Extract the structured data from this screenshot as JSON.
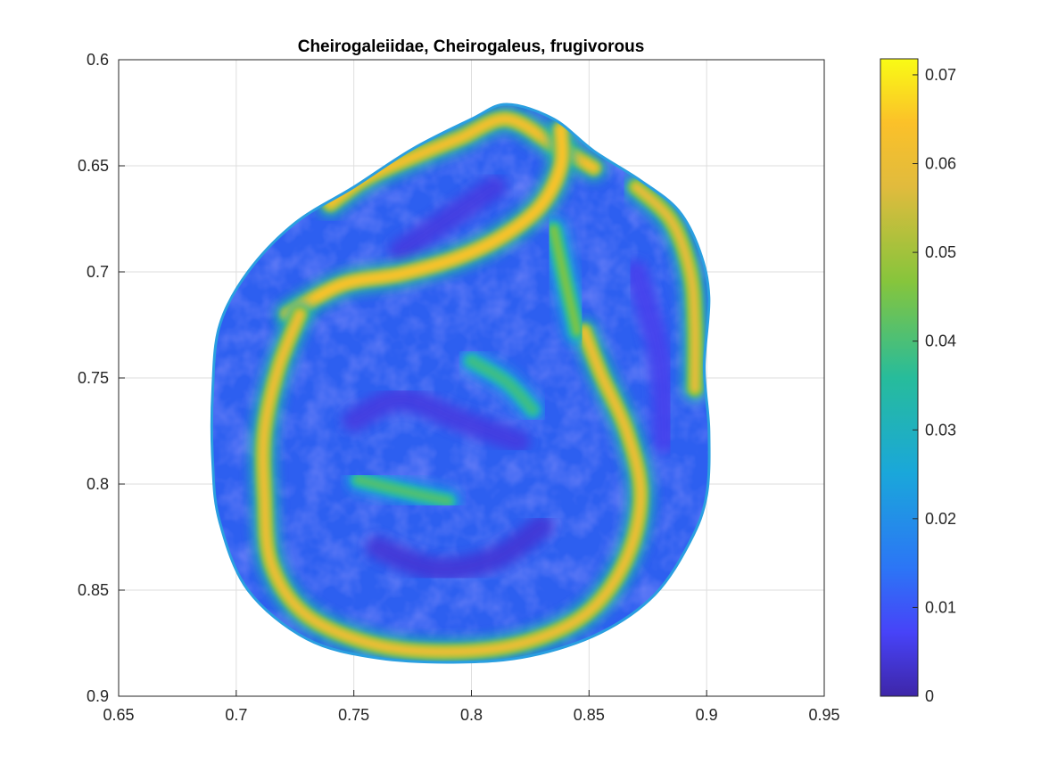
{
  "chart_data": {
    "type": "heatmap",
    "title": "Cheirogaleiidae, Cheirogaleus, frugivorous",
    "xlabel": "",
    "ylabel": "",
    "xlim": [
      0.65,
      0.95
    ],
    "ylim": [
      0.6,
      0.9
    ],
    "y_reversed": true,
    "x_ticks": [
      "0.65",
      "0.7",
      "0.75",
      "0.8",
      "0.85",
      "0.9",
      "0.95"
    ],
    "y_ticks": [
      "0.6",
      "0.65",
      "0.7",
      "0.75",
      "0.8",
      "0.85",
      "0.9"
    ],
    "grid": true,
    "colormap": "parula",
    "colorbar": {
      "limits": [
        0,
        0.071
      ],
      "ticks": [
        "0",
        "0.01",
        "0.02",
        "0.03",
        "0.04",
        "0.05",
        "0.06",
        "0.07"
      ]
    },
    "surface_outline": [
      [
        0.815,
        0.621
      ],
      [
        0.835,
        0.628
      ],
      [
        0.852,
        0.643
      ],
      [
        0.872,
        0.657
      ],
      [
        0.888,
        0.671
      ],
      [
        0.897,
        0.69
      ],
      [
        0.901,
        0.712
      ],
      [
        0.899,
        0.745
      ],
      [
        0.901,
        0.775
      ],
      [
        0.9,
        0.805
      ],
      [
        0.893,
        0.827
      ],
      [
        0.878,
        0.852
      ],
      [
        0.855,
        0.87
      ],
      [
        0.825,
        0.881
      ],
      [
        0.795,
        0.884
      ],
      [
        0.76,
        0.882
      ],
      [
        0.73,
        0.873
      ],
      [
        0.705,
        0.85
      ],
      [
        0.693,
        0.818
      ],
      [
        0.69,
        0.79
      ],
      [
        0.69,
        0.755
      ],
      [
        0.693,
        0.725
      ],
      [
        0.705,
        0.7
      ],
      [
        0.725,
        0.677
      ],
      [
        0.75,
        0.66
      ],
      [
        0.775,
        0.642
      ],
      [
        0.8,
        0.628
      ]
    ],
    "ridges": [
      {
        "level": 0.062,
        "points": [
          [
            0.74,
            0.668
          ],
          [
            0.755,
            0.656
          ],
          [
            0.775,
            0.646
          ],
          [
            0.795,
            0.637
          ],
          [
            0.815,
            0.628
          ],
          [
            0.835,
            0.64
          ],
          [
            0.852,
            0.651
          ]
        ]
      },
      {
        "level": 0.064,
        "points": [
          [
            0.722,
            0.72
          ],
          [
            0.745,
            0.706
          ],
          [
            0.77,
            0.701
          ],
          [
            0.795,
            0.693
          ],
          [
            0.815,
            0.682
          ],
          [
            0.83,
            0.668
          ],
          [
            0.838,
            0.65
          ],
          [
            0.838,
            0.633
          ]
        ]
      },
      {
        "level": 0.06,
        "points": [
          [
            0.727,
            0.72
          ],
          [
            0.718,
            0.745
          ],
          [
            0.712,
            0.775
          ],
          [
            0.712,
            0.805
          ],
          [
            0.715,
            0.838
          ],
          [
            0.73,
            0.862
          ],
          [
            0.76,
            0.876
          ],
          [
            0.795,
            0.879
          ],
          [
            0.825,
            0.874
          ],
          [
            0.85,
            0.86
          ],
          [
            0.866,
            0.835
          ],
          [
            0.872,
            0.805
          ],
          [
            0.866,
            0.775
          ],
          [
            0.855,
            0.748
          ],
          [
            0.848,
            0.728
          ]
        ]
      },
      {
        "level": 0.058,
        "points": [
          [
            0.87,
            0.66
          ],
          [
            0.885,
            0.676
          ],
          [
            0.893,
            0.7
          ],
          [
            0.895,
            0.725
          ],
          [
            0.895,
            0.755
          ]
        ]
      },
      {
        "level": 0.045,
        "points": [
          [
            0.835,
            0.68
          ],
          [
            0.84,
            0.705
          ],
          [
            0.845,
            0.728
          ]
        ]
      },
      {
        "level": 0.04,
        "points": [
          [
            0.752,
            0.798
          ],
          [
            0.77,
            0.803
          ],
          [
            0.79,
            0.808
          ]
        ]
      },
      {
        "level": 0.038,
        "points": [
          [
            0.8,
            0.742
          ],
          [
            0.815,
            0.752
          ],
          [
            0.826,
            0.765
          ]
        ]
      }
    ],
    "valleys": [
      {
        "level": 0.004,
        "points": [
          [
            0.76,
            0.83
          ],
          [
            0.785,
            0.84
          ],
          [
            0.81,
            0.835
          ],
          [
            0.83,
            0.82
          ]
        ]
      },
      {
        "level": 0.005,
        "points": [
          [
            0.77,
            0.69
          ],
          [
            0.79,
            0.675
          ],
          [
            0.81,
            0.66
          ]
        ]
      },
      {
        "level": 0.005,
        "points": [
          [
            0.75,
            0.77
          ],
          [
            0.77,
            0.76
          ],
          [
            0.795,
            0.77
          ],
          [
            0.82,
            0.78
          ]
        ]
      },
      {
        "level": 0.006,
        "points": [
          [
            0.87,
            0.7
          ],
          [
            0.88,
            0.74
          ],
          [
            0.882,
            0.78
          ]
        ]
      }
    ]
  }
}
